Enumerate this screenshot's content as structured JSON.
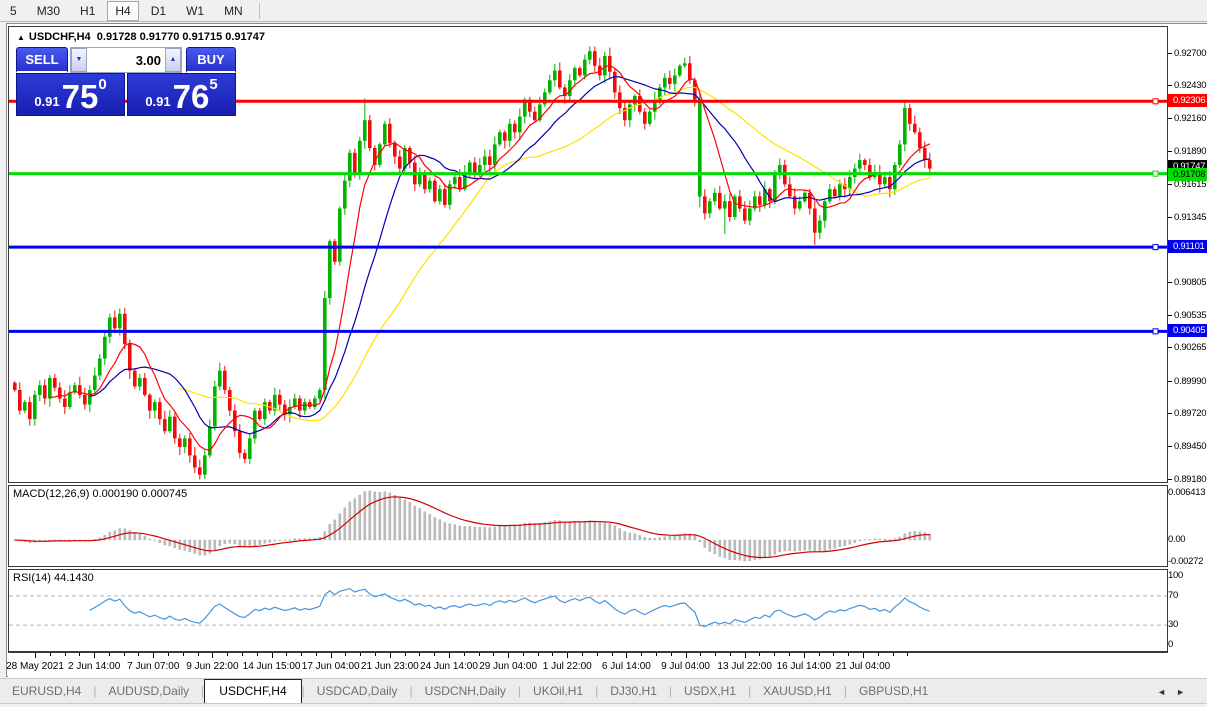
{
  "toolbar": {
    "items": [
      "5",
      "M30",
      "H1",
      "H4",
      "D1",
      "W1",
      "MN"
    ],
    "active": "H4"
  },
  "chart": {
    "title_symbol": "USDCHF,H4",
    "title_ohlc": "0.91728 0.91770 0.91715 0.91747",
    "collapse_icon": "▲"
  },
  "trade_panel": {
    "sell_label": "SELL",
    "buy_label": "BUY",
    "volume": "3.00",
    "spin_down": "▼",
    "spin_up": "▲",
    "sell_price": {
      "small": "0.91",
      "big": "75",
      "sup": "0"
    },
    "buy_price": {
      "small": "0.91",
      "big": "76",
      "sup": "5"
    }
  },
  "indicators": {
    "macd_label": "MACD(12,26,9) 0.000190 0.000745",
    "rsi_label": "RSI(14) 44.1430"
  },
  "chart_data": {
    "type": "candlestick",
    "symbol": "USDCHF",
    "timeframe": "H4",
    "current_bar": {
      "open": 0.91728,
      "high": 0.9177,
      "low": 0.91715,
      "close": 0.91747
    },
    "price_axis": {
      "min": 0.8916,
      "max": 0.9292,
      "ticks": [
        "0.92700",
        "0.92430",
        "0.92160",
        "0.91890",
        "0.91615",
        "0.91345",
        "0.91075",
        "0.90805",
        "0.90535",
        "0.90265",
        "0.89990",
        "0.89720",
        "0.89450",
        "0.89180"
      ]
    },
    "hlines": [
      {
        "price": 0.92306,
        "color": "#ff0000",
        "width": 3
      },
      {
        "price": 0.91708,
        "color": "#00dd00",
        "width": 3
      },
      {
        "price": 0.91101,
        "color": "#0000ee",
        "width": 3
      },
      {
        "price": 0.90405,
        "color": "#0000ee",
        "width": 3
      }
    ],
    "price_badges": [
      {
        "text": "0.92306",
        "bg": "#ff0000",
        "fg": "#ffffff",
        "price": 0.92306
      },
      {
        "text": "0.91747",
        "bg": "#000000",
        "fg": "#ffffff",
        "price": 0.9176
      },
      {
        "text": "0.91708",
        "bg": "#00dd00",
        "fg": "#000000",
        "price": 0.91695
      },
      {
        "text": "0.91101",
        "bg": "#0000ee",
        "fg": "#ffffff",
        "price": 0.91101
      },
      {
        "text": "0.90405",
        "bg": "#0000ee",
        "fg": "#ffffff",
        "price": 0.90405
      }
    ],
    "candles": {
      "first_open": 0.8998,
      "wick_amp": 0.0007,
      "up_color": "#00b400",
      "down_color": "#f20d0d",
      "closes": [
        0.8992,
        0.8975,
        0.8982,
        0.8968,
        0.8988,
        0.8996,
        0.8985,
        0.9002,
        0.8994,
        0.8985,
        0.8978,
        0.899,
        0.8996,
        0.8988,
        0.898,
        0.8992,
        0.9004,
        0.9018,
        0.9036,
        0.9052,
        0.9043,
        0.9055,
        0.903,
        0.9008,
        0.8995,
        0.9002,
        0.8988,
        0.8975,
        0.8982,
        0.8968,
        0.8958,
        0.897,
        0.8952,
        0.8945,
        0.8952,
        0.8938,
        0.8928,
        0.8922,
        0.8938,
        0.8962,
        0.8995,
        0.9008,
        0.8992,
        0.8975,
        0.8958,
        0.894,
        0.8935,
        0.8952,
        0.8975,
        0.8968,
        0.8982,
        0.8975,
        0.8988,
        0.898,
        0.8972,
        0.8978,
        0.8985,
        0.8975,
        0.8982,
        0.8978,
        0.8985,
        0.8992,
        0.9068,
        0.9115,
        0.9098,
        0.9142,
        0.9165,
        0.9188,
        0.9172,
        0.9198,
        0.9215,
        0.9192,
        0.9178,
        0.9195,
        0.9212,
        0.9196,
        0.9185,
        0.9175,
        0.9192,
        0.918,
        0.9162,
        0.9172,
        0.9158,
        0.9165,
        0.9148,
        0.9158,
        0.9145,
        0.9162,
        0.9168,
        0.9158,
        0.9172,
        0.918,
        0.9172,
        0.9178,
        0.9185,
        0.9178,
        0.9195,
        0.9205,
        0.9198,
        0.9212,
        0.9205,
        0.9218,
        0.9232,
        0.9222,
        0.9215,
        0.9228,
        0.9238,
        0.9248,
        0.9256,
        0.9242,
        0.9235,
        0.9248,
        0.9258,
        0.9252,
        0.9265,
        0.9272,
        0.926,
        0.9252,
        0.9268,
        0.9255,
        0.9238,
        0.9225,
        0.9215,
        0.9228,
        0.9235,
        0.9222,
        0.9212,
        0.9222,
        0.9232,
        0.9242,
        0.925,
        0.9245,
        0.9252,
        0.926,
        0.9262,
        0.9248,
        0.9232,
        0.9152,
        0.9138,
        0.9148,
        0.9155,
        0.9142,
        0.9148,
        0.9135,
        0.9152,
        0.9142,
        0.9132,
        0.9142,
        0.9152,
        0.9145,
        0.9158,
        0.9148,
        0.9172,
        0.9178,
        0.9162,
        0.9152,
        0.9142,
        0.9148,
        0.9155,
        0.9142,
        0.9122,
        0.9132,
        0.9148,
        0.9158,
        0.9152,
        0.9162,
        0.9158,
        0.9168,
        0.9175,
        0.9182,
        0.9178,
        0.9168,
        0.9172,
        0.9162,
        0.9168,
        0.9158,
        0.9178,
        0.9195,
        0.9225,
        0.9212,
        0.9205,
        0.9192,
        0.9182,
        0.9175
      ],
      "wick_overrides": {
        "37": {
          "l": 0.8918
        },
        "62": {
          "l": 0.8985
        },
        "70": {
          "h": 0.9233
        },
        "115": {
          "h": 0.9276
        },
        "137": {
          "l": 0.9143
        },
        "142": {
          "l": 0.9121
        },
        "160": {
          "l": 0.9112
        },
        "178": {
          "h": 0.9232
        }
      },
      "color_overrides": {
        "137": "up"
      }
    },
    "moving_averages": [
      {
        "period": 8,
        "color": "#ff0000"
      },
      {
        "period": 16,
        "color": "#0000b4"
      },
      {
        "period": 34,
        "color": "#ffe100"
      }
    ],
    "macd": {
      "params": [
        12,
        26,
        9
      ],
      "hist_color": "#bebebe",
      "signal_color": "#d40000",
      "axis": {
        "max_label": "0.006413",
        "zero_label": "0.00",
        "min_label": "-0.00272"
      }
    },
    "rsi": {
      "period": 14,
      "current": 44.143,
      "color": "#4695dc",
      "axis_labels": [
        100,
        70,
        30,
        0
      ],
      "dashed_levels": [
        70,
        30
      ]
    },
    "time_axis": {
      "labels": [
        "28 May 2021",
        "2 Jun 14:00",
        "7 Jun 07:00",
        "9 Jun 22:00",
        "14 Jun 15:00",
        "17 Jun 04:00",
        "21 Jun 23:00",
        "24 Jun 14:00",
        "29 Jun 04:00",
        "1 Jul 22:00",
        "6 Jul 14:00",
        "9 Jul 04:00",
        "13 Jul 22:00",
        "16 Jul 14:00",
        "21 Jul 04:00"
      ]
    }
  },
  "tabs": {
    "items": [
      "EURUSD,H4",
      "AUDUSD,Daily",
      "USDCHF,H4",
      "USDCAD,Daily",
      "USDCNH,Daily",
      "UKOil,H1",
      "DJ30,H1",
      "USDX,H1",
      "XAUUSD,H1",
      "GBPUSD,H1"
    ],
    "active_index": 2,
    "scroll_left": "◄",
    "scroll_right": "►"
  }
}
